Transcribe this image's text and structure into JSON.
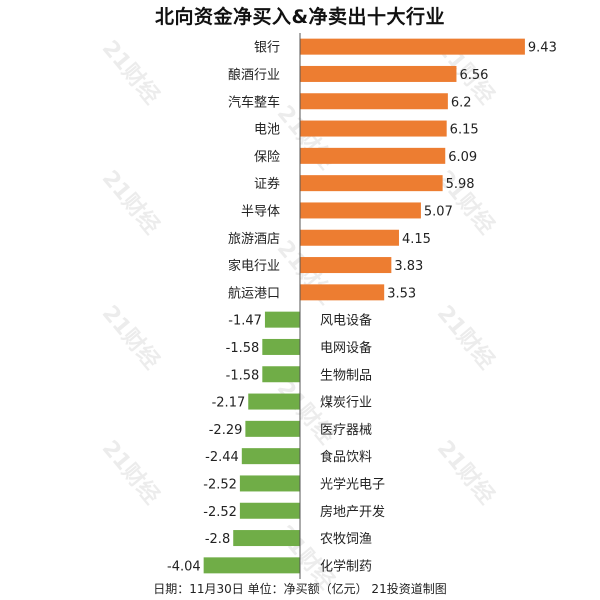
{
  "title": "北向资金净买入&净卖出十大行业",
  "footer": "日期：11月30日 单位：净买额（亿元） 21投资道制图",
  "watermark": "21财经",
  "colors": {
    "positive": "#ED7D31",
    "negative": "#70AD47",
    "axis": "#555555",
    "text": "#222222"
  },
  "chart_data": {
    "type": "bar",
    "orientation": "horizontal",
    "title": "北向资金净买入&净卖出十大行业",
    "unit": "净买额（亿元）",
    "categories": [
      "银行",
      "酿酒行业",
      "汽车整车",
      "电池",
      "保险",
      "证券",
      "半导体",
      "旅游酒店",
      "家电行业",
      "航运港口",
      "风电设备",
      "电网设备",
      "生物制品",
      "煤炭行业",
      "医疗器械",
      "食品饮料",
      "光学光电子",
      "房地产开发",
      "农牧饲渔",
      "化学制药"
    ],
    "values": [
      9.43,
      6.56,
      6.2,
      6.15,
      6.09,
      5.98,
      5.07,
      4.15,
      3.83,
      3.53,
      -1.47,
      -1.58,
      -1.58,
      -2.17,
      -2.29,
      -2.44,
      -2.52,
      -2.52,
      -2.8,
      -4.04
    ],
    "value_labels": [
      "9.43",
      "6.56",
      "6.2",
      "6.15",
      "6.09",
      "5.98",
      "5.07",
      "4.15",
      "3.83",
      "3.53",
      "-1.47",
      "-1.58",
      "-1.58",
      "-2.17",
      "-2.29",
      "-2.44",
      "-2.52",
      "-2.52",
      "-2.8",
      "-4.04"
    ],
    "xlim": [
      -4.04,
      9.43
    ],
    "grid": false,
    "legend": false
  }
}
